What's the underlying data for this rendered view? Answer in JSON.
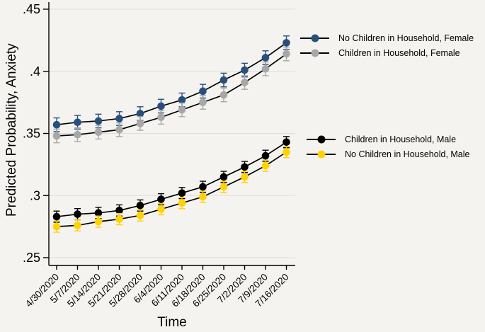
{
  "figure": {
    "background_color": "#f4f3f0",
    "grid_color": "#dfdedb",
    "axis_color": "#000000"
  },
  "chart_data": {
    "type": "line",
    "title": "",
    "xlabel": "Time",
    "ylabel": "Predicted Probability, Anxiety",
    "grid": "horizontal",
    "ylim": [
      0.25,
      0.45
    ],
    "y_ticks": [
      0.25,
      0.3,
      0.35,
      0.4,
      0.45
    ],
    "y_tick_labels": [
      ".25",
      ".3",
      ".35",
      ".4",
      ".45"
    ],
    "categories": [
      "4/30/2020",
      "5/7/2020",
      "5/14/2020",
      "5/21/2020",
      "5/28/2020",
      "6/4/2020",
      "6/11/2020",
      "6/18/2020",
      "6/25/2020",
      "7/2/2020",
      "7/9/2020",
      "7/16/2020"
    ],
    "line_color": "#000000",
    "marker": "circle-with-error-bars",
    "legend_position": "right, two groups (female pair top, male pair middle)",
    "series": [
      {
        "name": "No Children in Household, Female",
        "color": "#28507d",
        "values": [
          0.357,
          0.359,
          0.36,
          0.362,
          0.366,
          0.372,
          0.377,
          0.384,
          0.393,
          0.401,
          0.411,
          0.423
        ],
        "ci_halfwidth": 0.0055
      },
      {
        "name": "Children in Household, Female",
        "color": "#a7a7a7",
        "values": [
          0.348,
          0.349,
          0.351,
          0.353,
          0.358,
          0.363,
          0.369,
          0.375,
          0.381,
          0.391,
          0.402,
          0.414
        ],
        "ci_halfwidth": 0.0055
      },
      {
        "name": "Children in Household, Male",
        "color": "#000000",
        "values": [
          0.283,
          0.285,
          0.286,
          0.288,
          0.292,
          0.297,
          0.302,
          0.307,
          0.315,
          0.323,
          0.332,
          0.343
        ],
        "ci_halfwidth": 0.0045
      },
      {
        "name": "No Children in Household, Male",
        "color": "#ffd200",
        "values": [
          0.275,
          0.276,
          0.279,
          0.281,
          0.284,
          0.289,
          0.294,
          0.299,
          0.307,
          0.315,
          0.324,
          0.335
        ],
        "ci_halfwidth": 0.0045
      }
    ]
  }
}
